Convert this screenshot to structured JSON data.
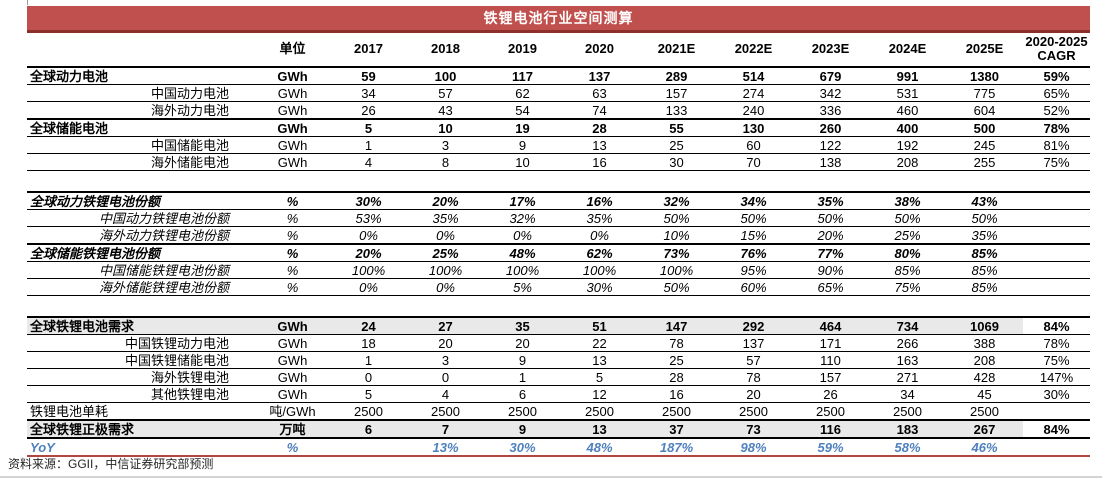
{
  "title": "铁锂电池行业空间测算",
  "source": "资料来源：GGII，中信证券研究部预测",
  "colors": {
    "title_bg": "#C0504D",
    "title_border": "#8C2F2B",
    "yoy_blue": "#4E81BD",
    "row_shade": "#E9E9E9",
    "border_black": "#000000",
    "bottom_red_rule": "#B1453F"
  },
  "chart_data": {
    "type": "table",
    "title": "铁锂电池行业空间测算",
    "unit_header": "单位",
    "year_columns": [
      "2017",
      "2018",
      "2019",
      "2020",
      "2021E",
      "2022E",
      "2023E",
      "2024E",
      "2025E"
    ],
    "cagr_header": [
      "2020-2025",
      "CAGR"
    ],
    "rows": [
      {
        "style": "section",
        "label": "全球动力电池",
        "unit": "GWh",
        "values": [
          "59",
          "100",
          "117",
          "137",
          "289",
          "514",
          "679",
          "991",
          "1380"
        ],
        "cagr": "59%"
      },
      {
        "style": "sub",
        "label": "中国动力电池",
        "unit": "GWh",
        "values": [
          "34",
          "57",
          "62",
          "63",
          "157",
          "274",
          "342",
          "531",
          "775"
        ],
        "cagr": "65%"
      },
      {
        "style": "sub",
        "label": "海外动力电池",
        "unit": "GWh",
        "values": [
          "26",
          "43",
          "54",
          "74",
          "133",
          "240",
          "336",
          "460",
          "604"
        ],
        "cagr": "52%"
      },
      {
        "style": "section",
        "label": "全球储能电池",
        "unit": "GWh",
        "values": [
          "5",
          "10",
          "19",
          "28",
          "55",
          "130",
          "260",
          "400",
          "500"
        ],
        "cagr": "78%"
      },
      {
        "style": "sub",
        "label": "中国储能电池",
        "unit": "GWh",
        "values": [
          "1",
          "3",
          "9",
          "13",
          "25",
          "60",
          "122",
          "192",
          "245"
        ],
        "cagr": "81%"
      },
      {
        "style": "sub",
        "label": "海外储能电池",
        "unit": "GWh",
        "values": [
          "4",
          "8",
          "10",
          "16",
          "30",
          "70",
          "138",
          "208",
          "255"
        ],
        "cagr": "75%"
      },
      {
        "style": "gap",
        "label": "",
        "unit": "",
        "values": [
          "",
          "",
          "",
          "",
          "",
          "",
          "",
          "",
          ""
        ],
        "cagr": ""
      },
      {
        "style": "section ital",
        "label": "全球动力铁锂电池份额",
        "unit": "%",
        "values": [
          "30%",
          "20%",
          "17%",
          "16%",
          "32%",
          "34%",
          "35%",
          "38%",
          "43%"
        ],
        "cagr": ""
      },
      {
        "style": "sub ital",
        "label": "中国动力铁锂电池份额",
        "unit": "%",
        "values": [
          "53%",
          "35%",
          "32%",
          "35%",
          "50%",
          "50%",
          "50%",
          "50%",
          "50%"
        ],
        "cagr": ""
      },
      {
        "style": "sub ital",
        "label": "海外动力铁锂电池份额",
        "unit": "%",
        "values": [
          "0%",
          "0%",
          "0%",
          "0%",
          "10%",
          "15%",
          "20%",
          "25%",
          "35%"
        ],
        "cagr": ""
      },
      {
        "style": "section ital",
        "label": "全球储能铁锂电池份额",
        "unit": "%",
        "values": [
          "20%",
          "25%",
          "48%",
          "62%",
          "73%",
          "76%",
          "77%",
          "80%",
          "85%"
        ],
        "cagr": ""
      },
      {
        "style": "sub ital",
        "label": "中国储能铁锂电池份额",
        "unit": "%",
        "values": [
          "100%",
          "100%",
          "100%",
          "100%",
          "100%",
          "95%",
          "90%",
          "85%",
          "85%"
        ],
        "cagr": ""
      },
      {
        "style": "sub ital",
        "label": "海外储能铁锂电池份额",
        "unit": "%",
        "values": [
          "0%",
          "0%",
          "5%",
          "30%",
          "50%",
          "60%",
          "65%",
          "75%",
          "85%"
        ],
        "cagr": ""
      },
      {
        "style": "gap",
        "label": "",
        "unit": "",
        "values": [
          "",
          "",
          "",
          "",
          "",
          "",
          "",
          "",
          ""
        ],
        "cagr": ""
      },
      {
        "style": "section shaded",
        "label": "全球铁锂电池需求",
        "unit": "GWh",
        "values": [
          "24",
          "27",
          "35",
          "51",
          "147",
          "292",
          "464",
          "734",
          "1069"
        ],
        "cagr": "84%"
      },
      {
        "style": "sub",
        "label": "中国铁锂动力电池",
        "unit": "GWh",
        "values": [
          "18",
          "20",
          "20",
          "22",
          "78",
          "137",
          "171",
          "266",
          "388"
        ],
        "cagr": "78%"
      },
      {
        "style": "sub",
        "label": "中国铁锂储能电池",
        "unit": "GWh",
        "values": [
          "1",
          "3",
          "9",
          "13",
          "25",
          "57",
          "110",
          "163",
          "208"
        ],
        "cagr": "75%"
      },
      {
        "style": "sub",
        "label": "海外铁锂电池",
        "unit": "GWh",
        "values": [
          "0",
          "0",
          "1",
          "5",
          "28",
          "78",
          "157",
          "271",
          "428"
        ],
        "cagr": "147%"
      },
      {
        "style": "sub",
        "label": "其他铁锂电池",
        "unit": "GWh",
        "values": [
          "5",
          "4",
          "6",
          "12",
          "16",
          "20",
          "26",
          "34",
          "45"
        ],
        "cagr": "30%"
      },
      {
        "style": "plain",
        "label": "铁锂电池单耗",
        "unit": "吨/GWh",
        "values": [
          "2500",
          "2500",
          "2500",
          "2500",
          "2500",
          "2500",
          "2500",
          "2500",
          "2500"
        ],
        "cagr": ""
      },
      {
        "style": "section shaded",
        "label": "全球铁锂正极需求",
        "unit": "万吨",
        "values": [
          "6",
          "7",
          "9",
          "13",
          "37",
          "73",
          "116",
          "183",
          "267"
        ],
        "cagr": "84%"
      },
      {
        "style": "yoy",
        "label": "YoY",
        "unit": "%",
        "values": [
          "",
          "13%",
          "30%",
          "48%",
          "187%",
          "98%",
          "59%",
          "58%",
          "46%"
        ],
        "cagr": ""
      }
    ]
  }
}
